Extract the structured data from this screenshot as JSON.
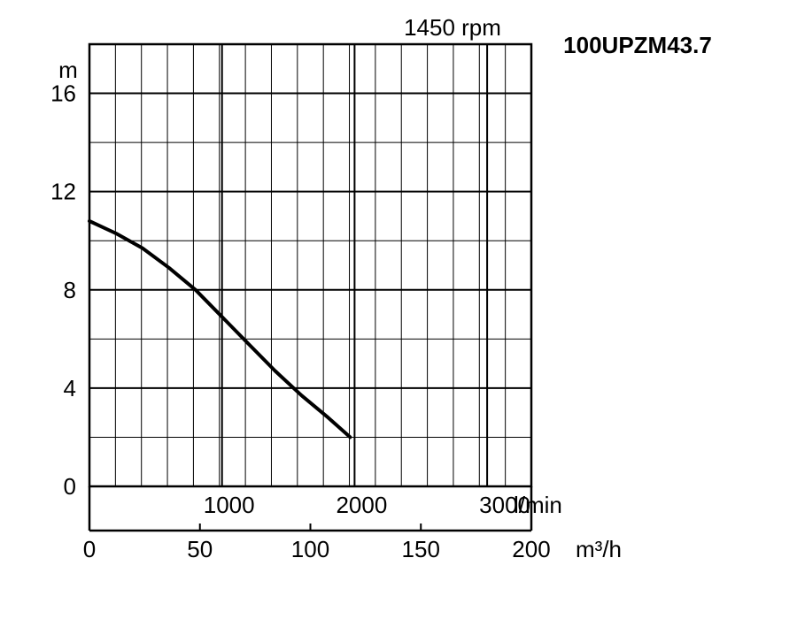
{
  "chart_data": {
    "type": "line",
    "title": "100UPZM43.7",
    "subtitle": "1450 rpm",
    "y_unit": "m",
    "lpm_unit": "l/min",
    "m3h_unit": "m³/h",
    "ylim": [
      0,
      18
    ],
    "xlim": [
      0,
      200
    ],
    "grid": true,
    "y_ticks": [
      {
        "value": 0,
        "label": "0"
      },
      {
        "value": 4,
        "label": "4"
      },
      {
        "value": 8,
        "label": "8"
      },
      {
        "value": 12,
        "label": "12"
      },
      {
        "value": 16,
        "label": "16"
      }
    ],
    "x_ticks_m3h": [
      {
        "value": 0,
        "label": "0"
      },
      {
        "value": 50,
        "label": "50"
      },
      {
        "value": 100,
        "label": "100"
      },
      {
        "value": 150,
        "label": "150"
      },
      {
        "value": 200,
        "label": "200"
      }
    ],
    "x_ticks_lpm": [
      {
        "value": 1000,
        "label": "1000"
      },
      {
        "value": 2000,
        "label": "2000"
      },
      {
        "value": 3000,
        "label": "3000"
      }
    ],
    "series": [
      {
        "color": "#000000",
        "x": [
          0,
          12,
          24,
          36,
          48,
          60,
          72,
          84,
          96,
          108,
          118
        ],
        "y": [
          10.8,
          10.3,
          9.7,
          8.9,
          8.0,
          6.9,
          5.8,
          4.7,
          3.7,
          2.8,
          2.0
        ]
      }
    ]
  }
}
